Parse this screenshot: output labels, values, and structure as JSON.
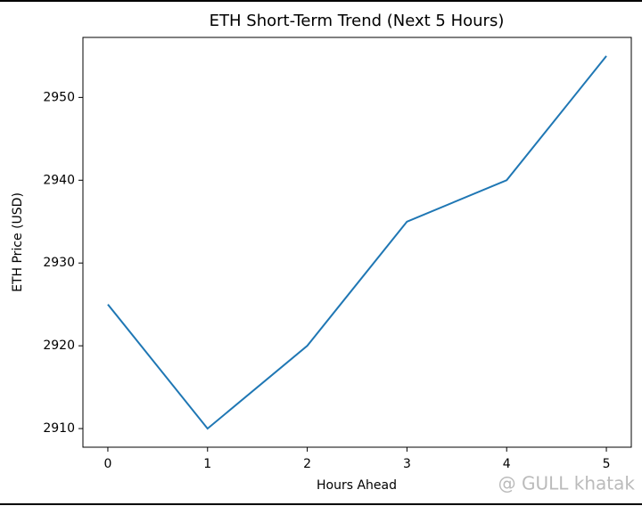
{
  "chart_data": {
    "type": "line",
    "title": "ETH Short-Term Trend (Next 5 Hours)",
    "x_label": "Hours Ahead",
    "y_label": "ETH Price (USD)",
    "x": [
      0,
      1,
      2,
      3,
      4,
      5
    ],
    "series": [
      {
        "name": "ETH",
        "color": "#1f77b4",
        "values": [
          2925,
          2910,
          2920,
          2935,
          2940,
          2955
        ]
      }
    ],
    "xlim": [
      -0.25,
      5.25
    ],
    "xticks": [
      0,
      1,
      2,
      3,
      4,
      5
    ],
    "ylim": [
      2907.75,
      2957.25
    ],
    "yticks": [
      2910,
      2920,
      2930,
      2940,
      2950
    ],
    "grid": false,
    "legend": false,
    "watermark": "@ GULL khatak"
  }
}
